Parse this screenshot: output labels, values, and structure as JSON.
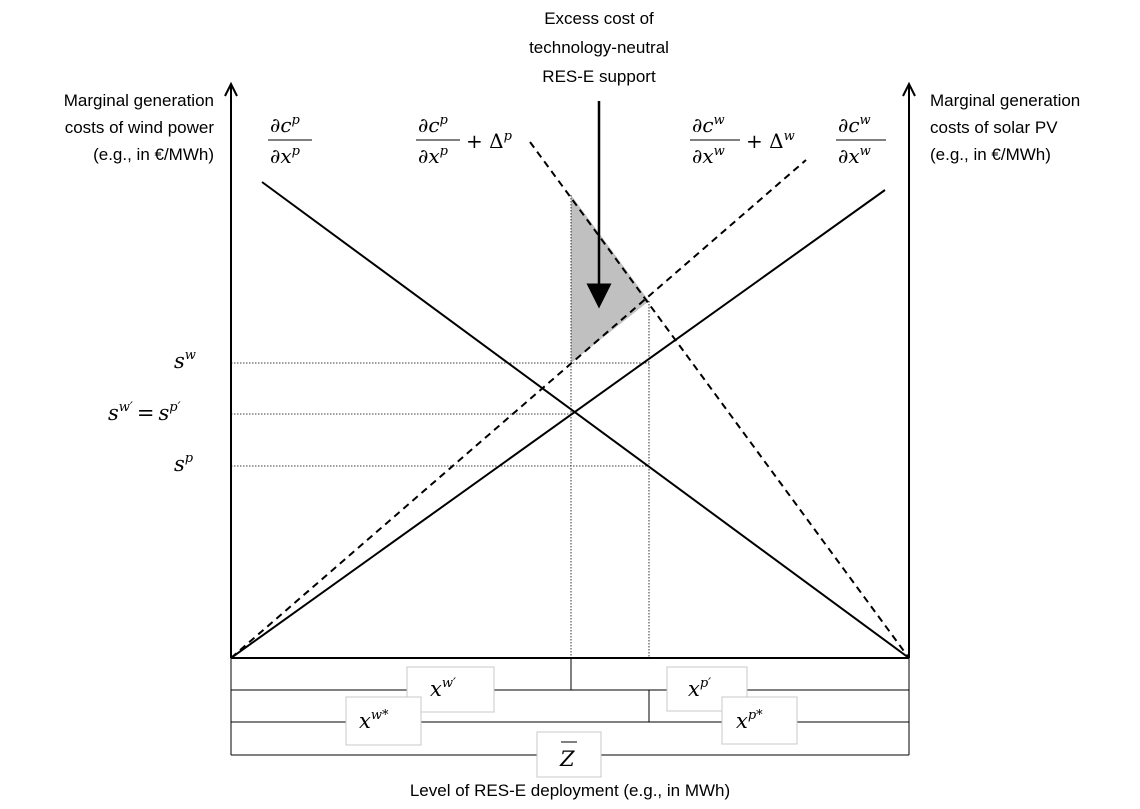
{
  "top_annotation": [
    "Excess cost of",
    "technology-neutral",
    "RES-E support"
  ],
  "left_axis_label": [
    "Marginal generation",
    "costs of wind power",
    "(e.g., in €/MWh)"
  ],
  "right_axis_label": [
    "Marginal generation",
    "costs of solar PV",
    "(e.g., in €/MWh)"
  ],
  "x_axis_label": "Level of RES-E deployment (e.g., in MWh)",
  "curves": {
    "cp_num": "∂c",
    "cp_sup": "p",
    "cp_den": "∂x",
    "cp_den_sup": "p",
    "cpd_extra": "+ Δ",
    "cpd_extra_sup": "p",
    "cw_num": "∂c",
    "cw_sup": "w",
    "cw_den": "∂x",
    "cw_den_sup": "w",
    "cwd_extra": "+ Δ",
    "cwd_extra_sup": "w"
  },
  "y_ticks": {
    "sw_base": "s",
    "sw_sup": "w",
    "eq_base1": "s",
    "eq_sup1": "w′",
    "eq_mid": "=",
    "eq_base2": "s",
    "eq_sup2": "p′",
    "sp_base": "s",
    "sp_sup": "p"
  },
  "quantity_boxes": {
    "xw_prime_base": "x",
    "xw_prime_sup": "w′",
    "xp_prime_base": "x",
    "xp_prime_sup": "p′",
    "xw_star_base": "x",
    "xw_star_sup": "w*",
    "xp_star_base": "x",
    "xp_star_sup": "p*",
    "zbar": "Z"
  },
  "colors": {
    "shade": "#c0c0c0",
    "line": "#000000",
    "box_border": "#c8c8c8"
  }
}
